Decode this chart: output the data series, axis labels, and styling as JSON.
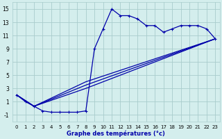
{
  "xlabel": "Graphe des températures (°c)",
  "background_color": "#d4eeed",
  "grid_color": "#a8cccc",
  "line_color": "#0000aa",
  "xlim": [
    -0.5,
    23.5
  ],
  "ylim": [
    -2,
    16
  ],
  "xticks": [
    0,
    1,
    2,
    3,
    4,
    5,
    6,
    7,
    8,
    9,
    10,
    11,
    12,
    13,
    14,
    15,
    16,
    17,
    18,
    19,
    20,
    21,
    22,
    23
  ],
  "yticks": [
    -1,
    1,
    3,
    5,
    7,
    9,
    11,
    13,
    15
  ],
  "curve1_x": [
    0,
    1,
    2,
    3,
    4,
    5,
    6,
    7,
    8,
    9,
    10,
    11,
    12,
    13,
    14,
    15,
    16,
    17,
    18,
    19,
    20,
    21,
    22,
    23
  ],
  "curve1_y": [
    2.0,
    1.0,
    0.3,
    -0.4,
    -0.6,
    -0.6,
    -0.6,
    -0.6,
    -0.4,
    9.0,
    12.0,
    15.0,
    14.0,
    14.0,
    13.5,
    12.5,
    12.5,
    11.5,
    12.0,
    12.5,
    12.5,
    12.5,
    12.0,
    10.5
  ],
  "curve2_x": [
    0,
    2,
    8,
    23
  ],
  "curve2_y": [
    2.0,
    0.3,
    4.0,
    10.5
  ],
  "curve3_x": [
    0,
    2,
    8,
    23
  ],
  "curve3_y": [
    2.0,
    0.3,
    3.5,
    10.5
  ],
  "curve4_x": [
    0,
    2,
    8,
    23
  ],
  "curve4_y": [
    2.0,
    0.3,
    3.0,
    10.5
  ],
  "marker_curve2_x": [
    8
  ],
  "marker_curve2_y": [
    4.0
  ]
}
